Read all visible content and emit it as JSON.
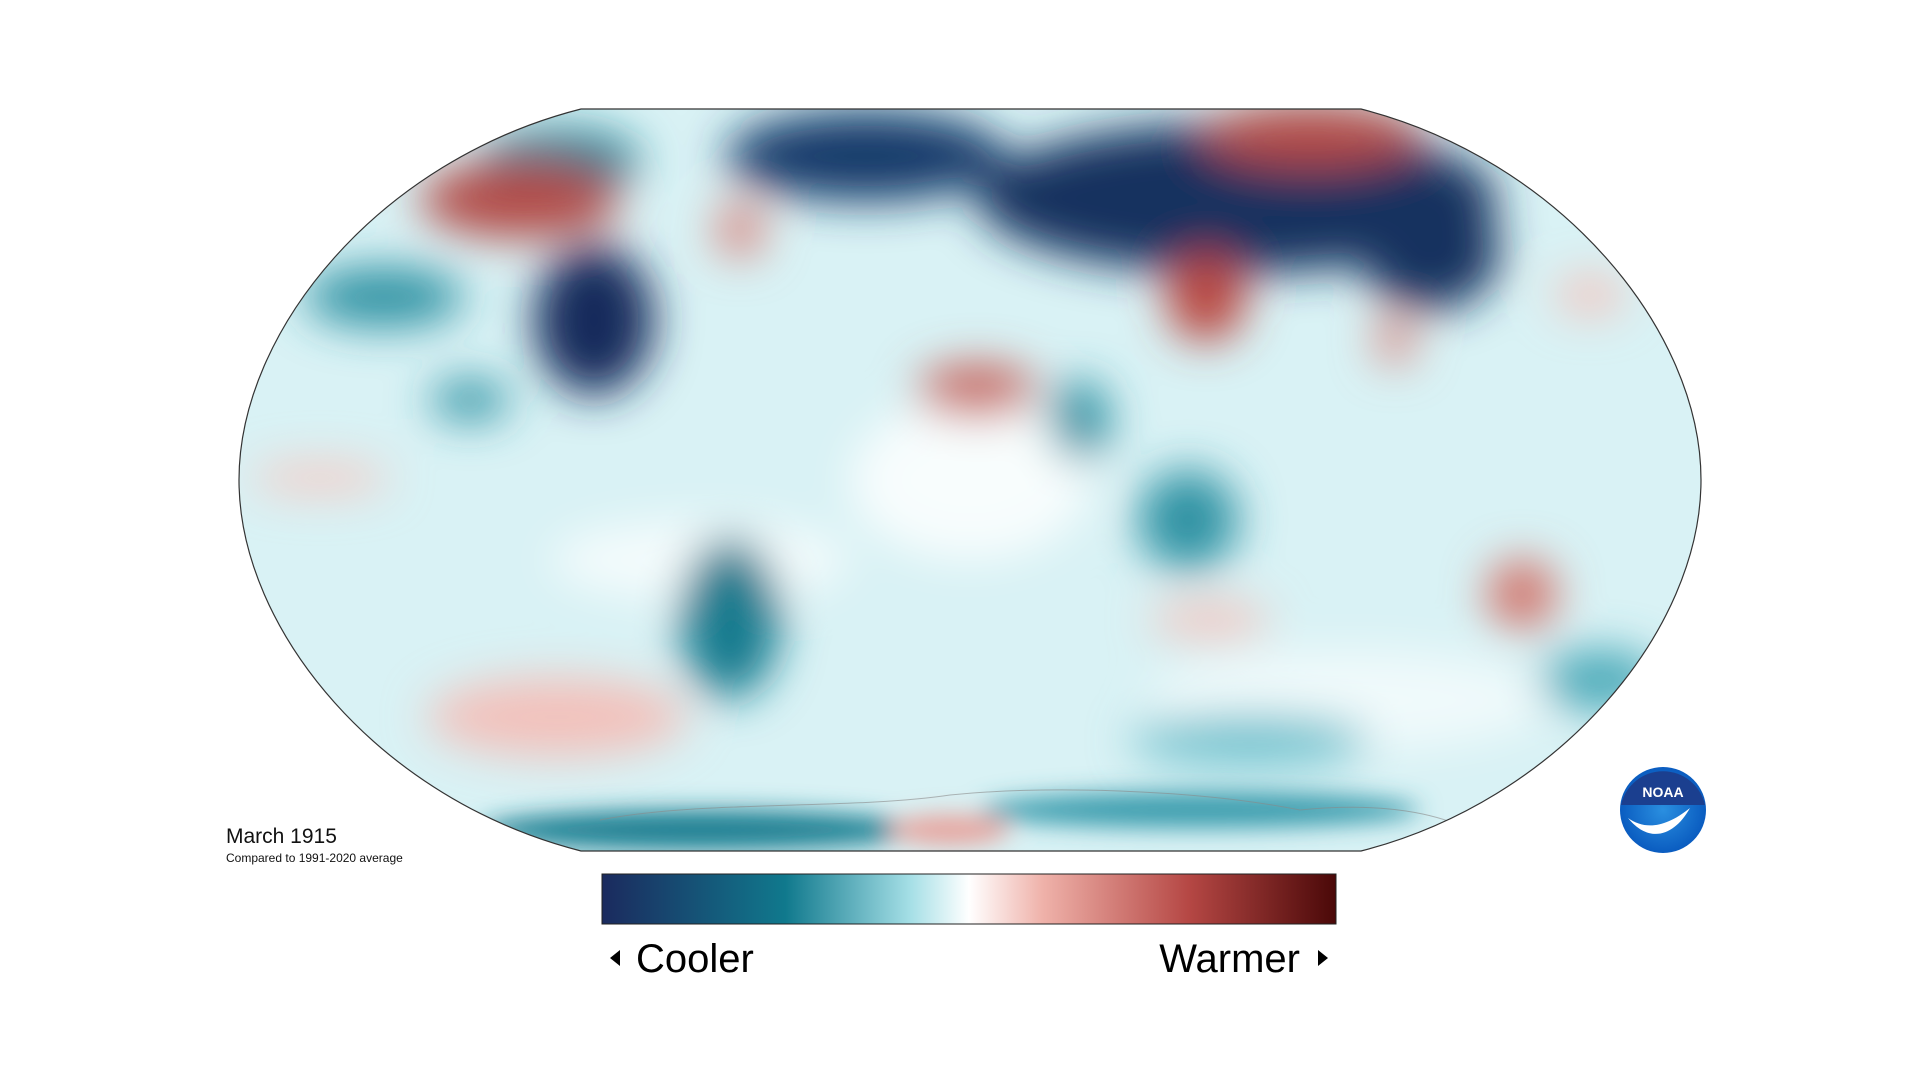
{
  "title": "March 1915",
  "subtitle": "Compared to 1991-2020 average",
  "legend": {
    "low_label": "Cooler",
    "high_label": "Warmer"
  },
  "logo": {
    "text": "NOAA"
  }
}
